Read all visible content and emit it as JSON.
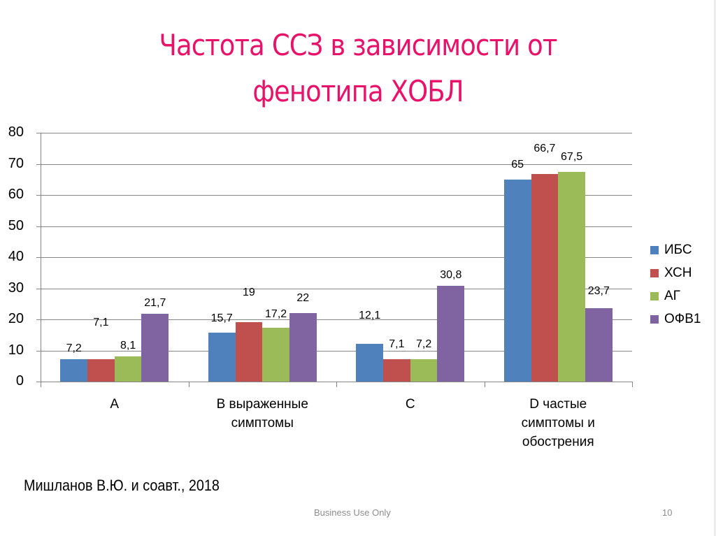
{
  "slide": {
    "title_line1": "Частота ССЗ в зависимости от",
    "title_line2": "фенотипа ХОБЛ",
    "citation": "Мишланов В.Ю. и соавт., 2018",
    "footer_center": "Business Use Only",
    "page_number": "10",
    "title_color": "#e8126b"
  },
  "chart_data": {
    "type": "bar",
    "title": "Частота ССЗ в зависимости от фенотипа ХОБЛ",
    "xlabel": "",
    "ylabel": "",
    "ylim": [
      0,
      80
    ],
    "yticks": [
      "0",
      "10",
      "20",
      "30",
      "40",
      "50",
      "60",
      "70",
      "80"
    ],
    "grid": true,
    "legend_position": "right",
    "categories": [
      "A",
      "B выраженные симптомы",
      "C",
      "D частые симптомы и обострения"
    ],
    "category_lines": [
      [
        "A"
      ],
      [
        "B выраженные",
        "симптомы"
      ],
      [
        "C"
      ],
      [
        "D частые",
        "симптомы и",
        "обострения"
      ]
    ],
    "series": [
      {
        "name": "ИБС",
        "color": "#4f81bd",
        "values": [
          7.2,
          15.7,
          12.1,
          65
        ],
        "labels": [
          "7,2",
          "15,7",
          "12,1",
          "65"
        ]
      },
      {
        "name": "ХСН",
        "color": "#c0504d",
        "values": [
          7.1,
          19,
          7.1,
          66.7
        ],
        "labels": [
          "7,1",
          "19",
          "7,1",
          "66,7"
        ]
      },
      {
        "name": "АГ",
        "color": "#9bbb59",
        "values": [
          8.1,
          17.2,
          7.2,
          67.5
        ],
        "labels": [
          "8,1",
          "17,2",
          "7,2",
          "67,5"
        ]
      },
      {
        "name": "ОФВ1",
        "color": "#8064a2",
        "values": [
          21.7,
          22,
          30.8,
          23.7
        ],
        "labels": [
          "21,7",
          "22",
          "30,8",
          "23,7"
        ]
      }
    ]
  }
}
